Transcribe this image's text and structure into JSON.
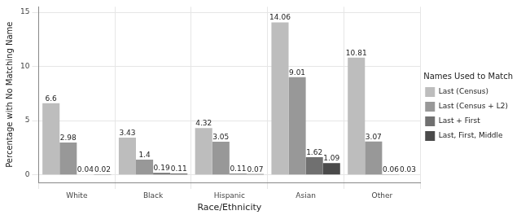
{
  "chart_data": {
    "type": "bar",
    "x_label": "Race/Ethnicity",
    "y_label": "Percentage with No Matching Name",
    "legend_title": "Names Used to Match",
    "categories": [
      "White",
      "Black",
      "Hispanic",
      "Asian",
      "Other"
    ],
    "series": [
      {
        "name": "Last (Census)",
        "color": "#bdbdbd",
        "values": [
          6.6,
          3.43,
          4.32,
          14.06,
          10.81
        ]
      },
      {
        "name": "Last (Census + L2)",
        "color": "#989898",
        "values": [
          2.98,
          1.4,
          3.05,
          9.01,
          3.07
        ]
      },
      {
        "name": "Last + First",
        "color": "#707070",
        "values": [
          0.04,
          0.19,
          0.11,
          1.62,
          0.06
        ]
      },
      {
        "name": "Last, First, Middle",
        "color": "#4a4a4a",
        "values": [
          0.02,
          0.11,
          0.07,
          1.09,
          0.03
        ]
      }
    ],
    "ylim": [
      -0.7,
      15.5
    ],
    "yticks": [
      0,
      5,
      10,
      15
    ],
    "grid": true,
    "legend": "right",
    "data_labels": true
  }
}
